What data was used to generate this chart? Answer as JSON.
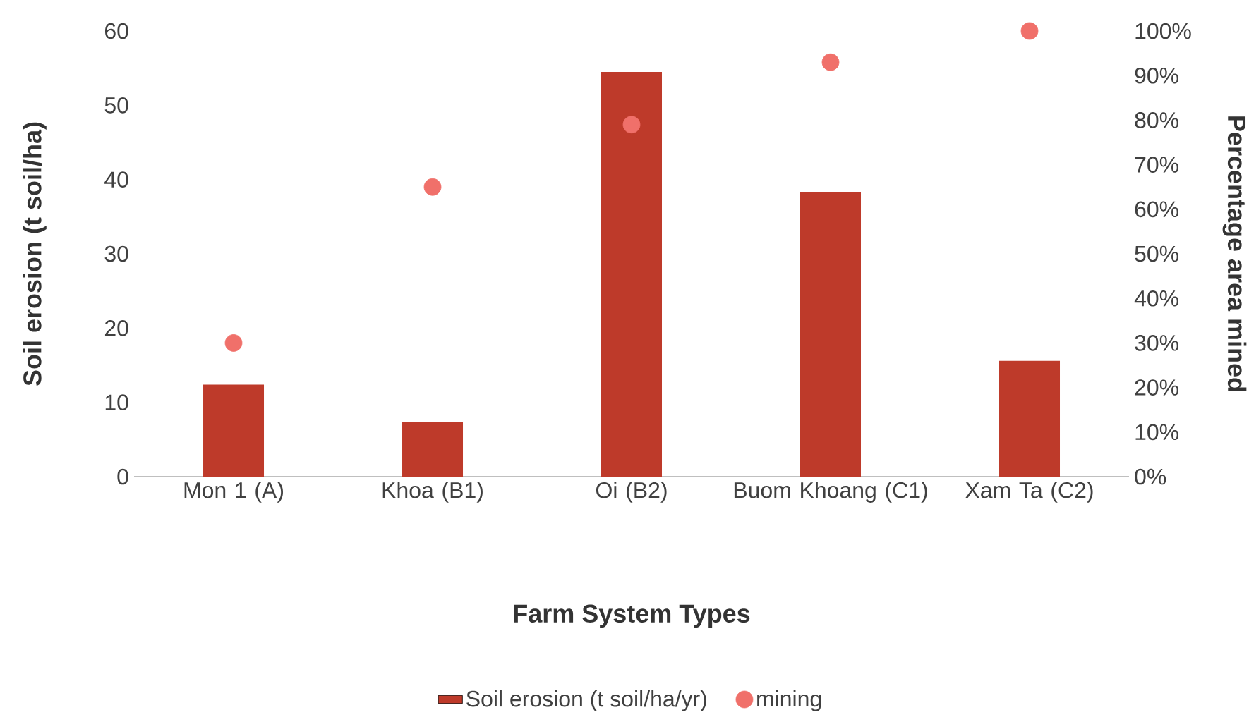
{
  "chart_data": {
    "type": "bar",
    "xlabel": "Farm System Types",
    "ylabel": "Soil erosion (t soil/ha)",
    "y2label": "Percentage area mined",
    "categories": [
      "Mon 1 (A)",
      "Khoa (B1)",
      "Oi (B2)",
      "Buom Khoang (C1)",
      "Xam Ta (C2)"
    ],
    "series": [
      {
        "name": "Soil erosion (t soil/ha/yr)",
        "color": "#be3a2a",
        "values": [
          12.4,
          7.4,
          54.5,
          38.3,
          15.6
        ]
      },
      {
        "name": "mining",
        "type": "scatter",
        "axis": "y2",
        "color": "#f0706a",
        "values": [
          30,
          65,
          79,
          93,
          100
        ]
      }
    ],
    "ylim": [
      0,
      60
    ],
    "yticks": [
      0,
      10,
      20,
      30,
      40,
      50,
      60
    ],
    "y2lim": [
      0,
      100
    ],
    "y2ticks": [
      {
        "value": 0,
        "label": "0%"
      },
      {
        "value": 10,
        "label": "10%"
      },
      {
        "value": 20,
        "label": "20%"
      },
      {
        "value": 30,
        "label": "30%"
      },
      {
        "value": 40,
        "label": "40%"
      },
      {
        "value": 50,
        "label": "50%"
      },
      {
        "value": 60,
        "label": "60%"
      },
      {
        "value": 70,
        "label": "70%"
      },
      {
        "value": 80,
        "label": "80%"
      },
      {
        "value": 90,
        "label": "90%"
      },
      {
        "value": 100,
        "label": "100%"
      }
    ],
    "legend": "bottom"
  }
}
